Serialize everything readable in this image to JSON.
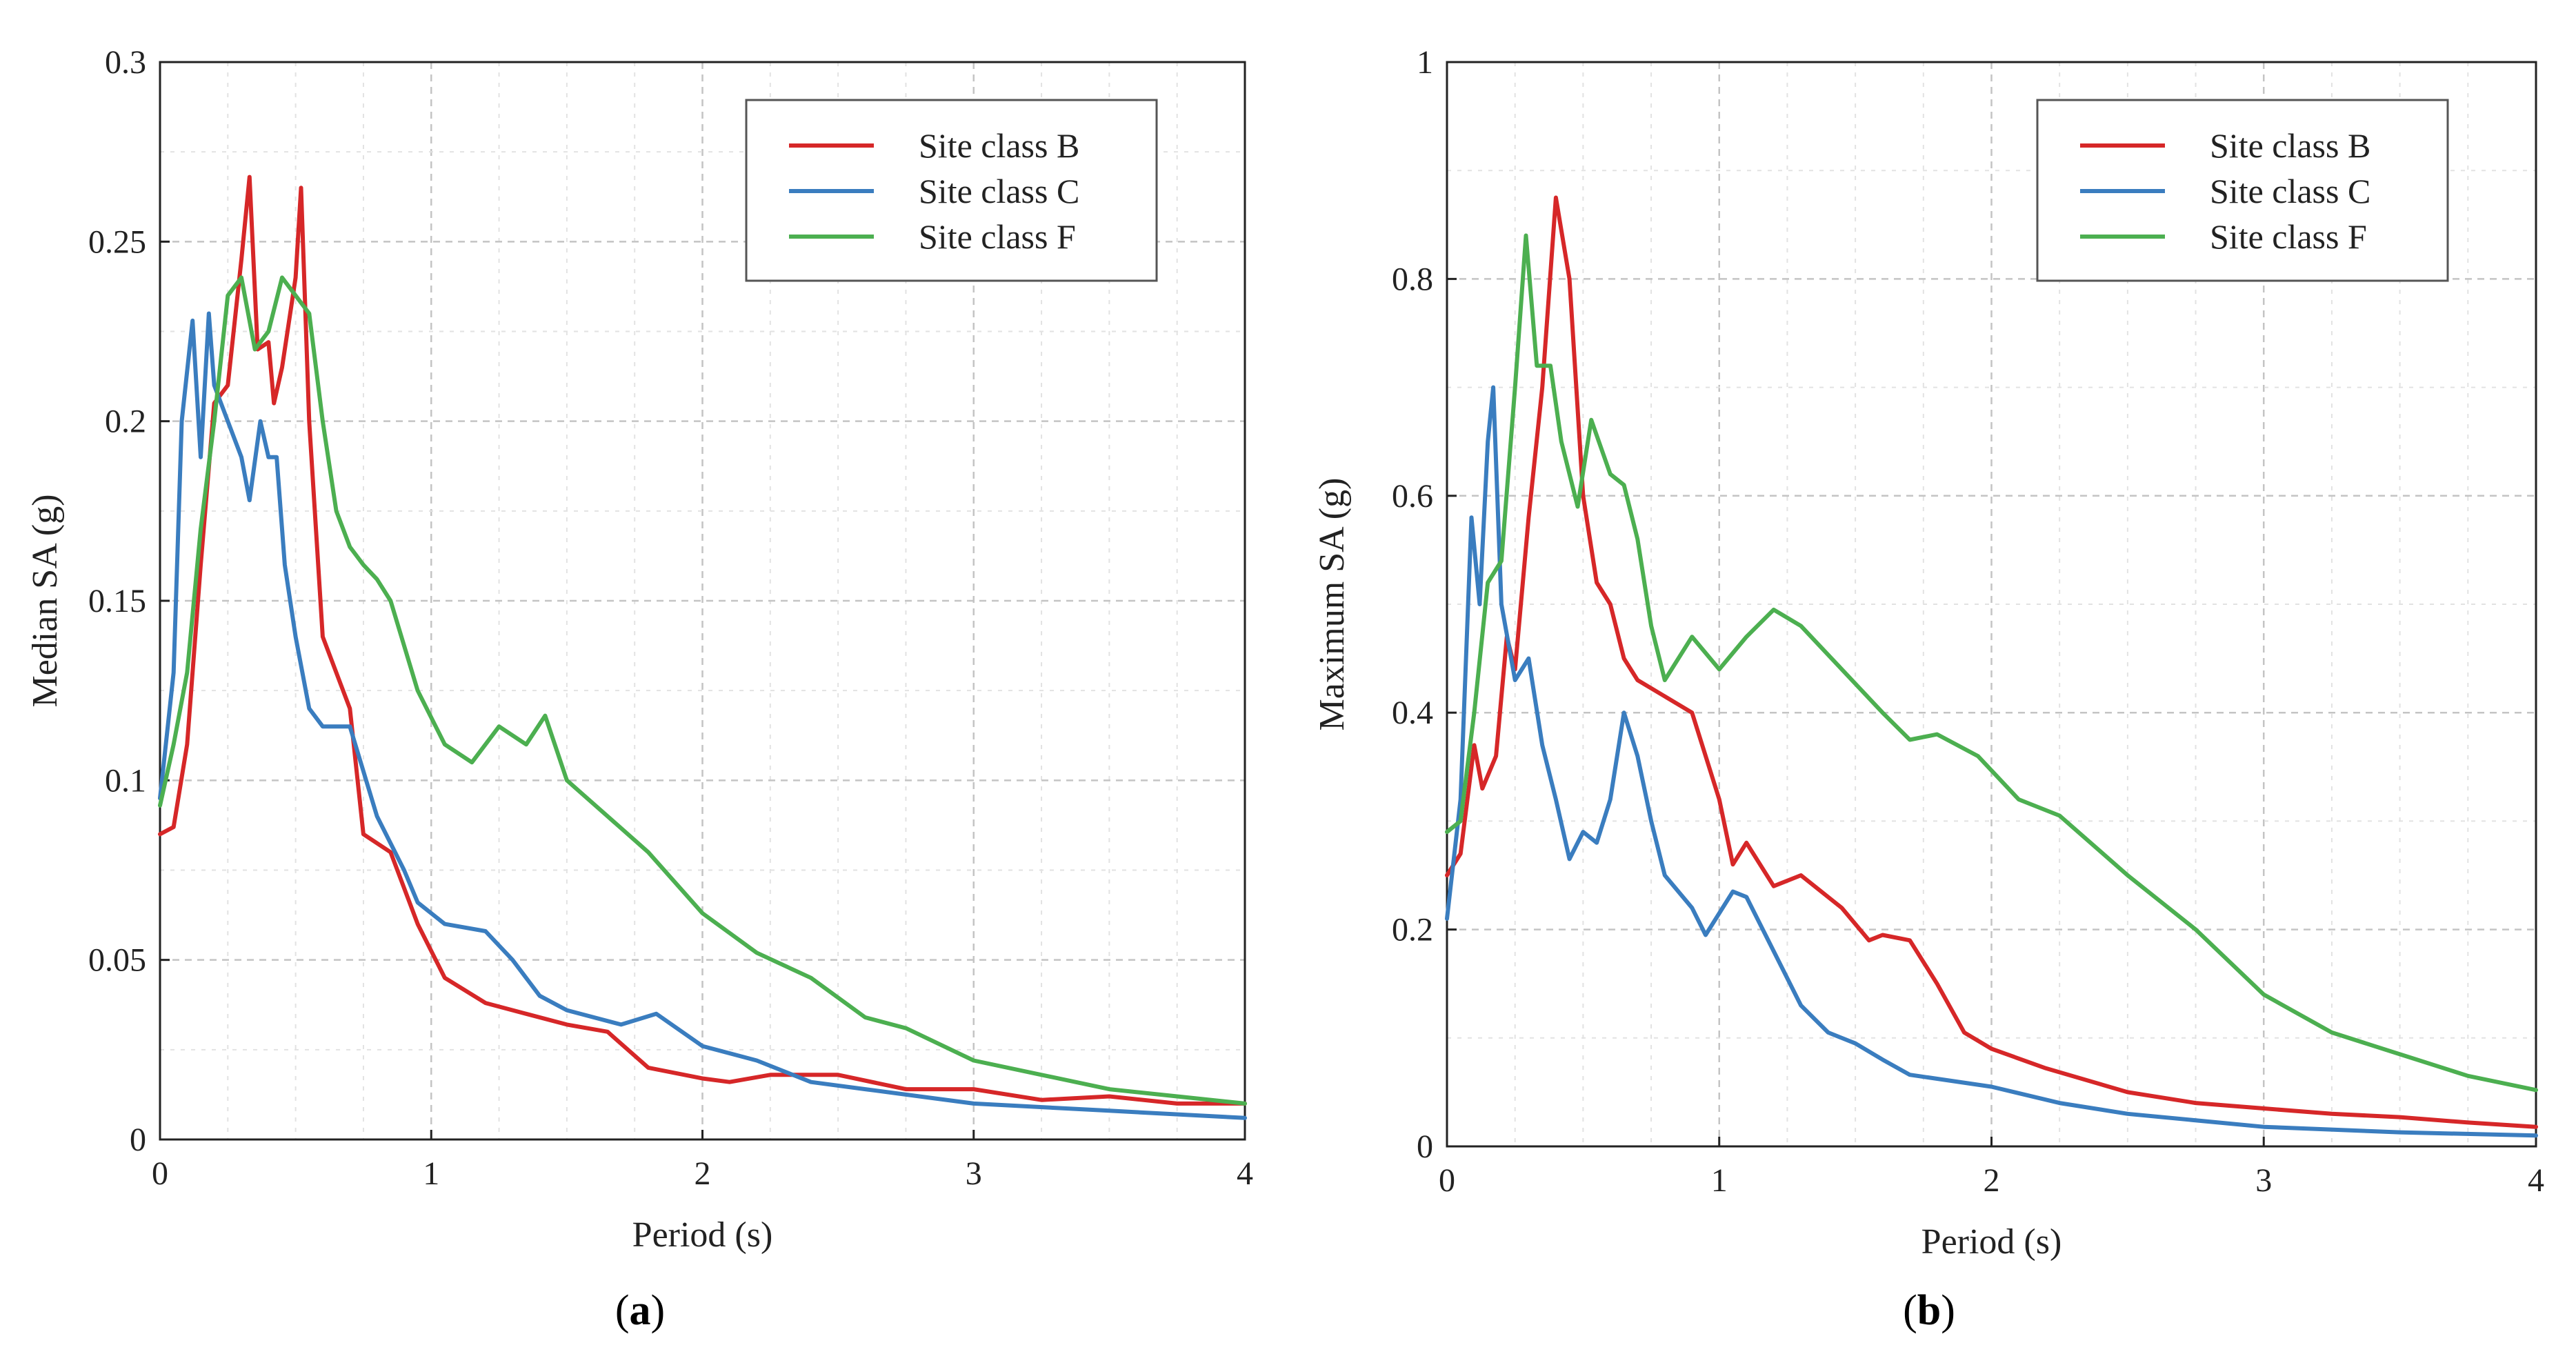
{
  "chart_data": [
    {
      "type": "line",
      "panel_label": "a",
      "title": "",
      "xlabel": "Period (s)",
      "ylabel": "Median SA (g)",
      "xlim": [
        0,
        4
      ],
      "ylim": [
        0,
        0.3
      ],
      "x_ticks": [
        0,
        1,
        2,
        3,
        4
      ],
      "x_tick_labels": [
        "0",
        "1",
        "2",
        "3",
        "4"
      ],
      "y_ticks": [
        0,
        0.05,
        0.1,
        0.15,
        0.2,
        0.25,
        0.3
      ],
      "y_tick_labels": [
        "0",
        "0.05",
        "0.1",
        "0.15",
        "0.2",
        "0.25",
        "0.3"
      ],
      "grid": true,
      "legend_position": "top-right",
      "series": [
        {
          "name": "Site class B",
          "color": "#d62728",
          "points": [
            [
              0,
              0.085
            ],
            [
              0.05,
              0.087
            ],
            [
              0.1,
              0.11
            ],
            [
              0.15,
              0.16
            ],
            [
              0.2,
              0.205
            ],
            [
              0.25,
              0.21
            ],
            [
              0.3,
              0.245
            ],
            [
              0.33,
              0.268
            ],
            [
              0.36,
              0.22
            ],
            [
              0.4,
              0.222
            ],
            [
              0.42,
              0.205
            ],
            [
              0.45,
              0.215
            ],
            [
              0.5,
              0.24
            ],
            [
              0.52,
              0.265
            ],
            [
              0.55,
              0.2
            ],
            [
              0.6,
              0.14
            ],
            [
              0.7,
              0.12
            ],
            [
              0.75,
              0.085
            ],
            [
              0.85,
              0.08
            ],
            [
              0.95,
              0.06
            ],
            [
              1.05,
              0.045
            ],
            [
              1.2,
              0.038
            ],
            [
              1.35,
              0.035
            ],
            [
              1.5,
              0.032
            ],
            [
              1.65,
              0.03
            ],
            [
              1.8,
              0.02
            ],
            [
              2.0,
              0.017
            ],
            [
              2.1,
              0.016
            ],
            [
              2.25,
              0.018
            ],
            [
              2.5,
              0.018
            ],
            [
              2.75,
              0.014
            ],
            [
              3.0,
              0.014
            ],
            [
              3.25,
              0.011
            ],
            [
              3.5,
              0.012
            ],
            [
              3.75,
              0.01
            ],
            [
              4.0,
              0.01
            ]
          ]
        },
        {
          "name": "Site class C",
          "color": "#3a7dbf",
          "points": [
            [
              0,
              0.095
            ],
            [
              0.05,
              0.13
            ],
            [
              0.08,
              0.2
            ],
            [
              0.12,
              0.228
            ],
            [
              0.15,
              0.19
            ],
            [
              0.18,
              0.23
            ],
            [
              0.2,
              0.21
            ],
            [
              0.25,
              0.2
            ],
            [
              0.3,
              0.19
            ],
            [
              0.33,
              0.178
            ],
            [
              0.37,
              0.2
            ],
            [
              0.4,
              0.19
            ],
            [
              0.43,
              0.19
            ],
            [
              0.46,
              0.16
            ],
            [
              0.5,
              0.14
            ],
            [
              0.55,
              0.12
            ],
            [
              0.6,
              0.115
            ],
            [
              0.7,
              0.115
            ],
            [
              0.8,
              0.09
            ],
            [
              0.9,
              0.075
            ],
            [
              0.95,
              0.066
            ],
            [
              1.05,
              0.06
            ],
            [
              1.2,
              0.058
            ],
            [
              1.3,
              0.05
            ],
            [
              1.4,
              0.04
            ],
            [
              1.5,
              0.036
            ],
            [
              1.7,
              0.032
            ],
            [
              1.83,
              0.035
            ],
            [
              2.0,
              0.026
            ],
            [
              2.2,
              0.022
            ],
            [
              2.4,
              0.016
            ],
            [
              2.6,
              0.014
            ],
            [
              2.8,
              0.012
            ],
            [
              3.0,
              0.01
            ],
            [
              3.5,
              0.008
            ],
            [
              4.0,
              0.006
            ]
          ]
        },
        {
          "name": "Site class F",
          "color": "#4caf50",
          "points": [
            [
              0,
              0.093
            ],
            [
              0.05,
              0.11
            ],
            [
              0.1,
              0.13
            ],
            [
              0.15,
              0.17
            ],
            [
              0.2,
              0.2
            ],
            [
              0.25,
              0.235
            ],
            [
              0.3,
              0.24
            ],
            [
              0.35,
              0.22
            ],
            [
              0.4,
              0.225
            ],
            [
              0.45,
              0.24
            ],
            [
              0.5,
              0.235
            ],
            [
              0.55,
              0.23
            ],
            [
              0.6,
              0.2
            ],
            [
              0.65,
              0.175
            ],
            [
              0.7,
              0.165
            ],
            [
              0.75,
              0.16
            ],
            [
              0.8,
              0.156
            ],
            [
              0.85,
              0.15
            ],
            [
              0.95,
              0.125
            ],
            [
              1.05,
              0.11
            ],
            [
              1.15,
              0.105
            ],
            [
              1.25,
              0.115
            ],
            [
              1.35,
              0.11
            ],
            [
              1.42,
              0.118
            ],
            [
              1.5,
              0.1
            ],
            [
              1.65,
              0.09
            ],
            [
              1.8,
              0.08
            ],
            [
              2.0,
              0.063
            ],
            [
              2.2,
              0.052
            ],
            [
              2.4,
              0.045
            ],
            [
              2.6,
              0.034
            ],
            [
              2.75,
              0.031
            ],
            [
              3.0,
              0.022
            ],
            [
              3.25,
              0.018
            ],
            [
              3.5,
              0.014
            ],
            [
              3.75,
              0.012
            ],
            [
              4.0,
              0.01
            ]
          ]
        }
      ]
    },
    {
      "type": "line",
      "panel_label": "b",
      "title": "",
      "xlabel": "Period (s)",
      "ylabel": "Maximum SA (g)",
      "xlim": [
        0,
        4
      ],
      "ylim": [
        0,
        1
      ],
      "x_ticks": [
        0,
        1,
        2,
        3,
        4
      ],
      "x_tick_labels": [
        "0",
        "1",
        "2",
        "3",
        "4"
      ],
      "y_ticks": [
        0,
        0.2,
        0.4,
        0.6,
        0.8,
        1
      ],
      "y_tick_labels": [
        "0",
        "0.2",
        "0.4",
        "0.6",
        "0.8",
        "1"
      ],
      "grid": true,
      "legend_position": "top-right",
      "series": [
        {
          "name": "Site class B",
          "color": "#d62728",
          "points": [
            [
              0,
              0.25
            ],
            [
              0.05,
              0.27
            ],
            [
              0.1,
              0.37
            ],
            [
              0.13,
              0.33
            ],
            [
              0.18,
              0.36
            ],
            [
              0.22,
              0.47
            ],
            [
              0.25,
              0.44
            ],
            [
              0.3,
              0.58
            ],
            [
              0.35,
              0.7
            ],
            [
              0.4,
              0.875
            ],
            [
              0.45,
              0.8
            ],
            [
              0.5,
              0.6
            ],
            [
              0.55,
              0.52
            ],
            [
              0.6,
              0.5
            ],
            [
              0.65,
              0.45
            ],
            [
              0.7,
              0.43
            ],
            [
              0.8,
              0.415
            ],
            [
              0.9,
              0.4
            ],
            [
              1.0,
              0.32
            ],
            [
              1.05,
              0.26
            ],
            [
              1.1,
              0.28
            ],
            [
              1.2,
              0.24
            ],
            [
              1.3,
              0.25
            ],
            [
              1.45,
              0.22
            ],
            [
              1.55,
              0.19
            ],
            [
              1.6,
              0.195
            ],
            [
              1.7,
              0.19
            ],
            [
              1.8,
              0.15
            ],
            [
              1.9,
              0.105
            ],
            [
              2.0,
              0.09
            ],
            [
              2.2,
              0.072
            ],
            [
              2.5,
              0.05
            ],
            [
              2.75,
              0.04
            ],
            [
              3.0,
              0.035
            ],
            [
              3.25,
              0.03
            ],
            [
              3.5,
              0.027
            ],
            [
              3.75,
              0.022
            ],
            [
              4.0,
              0.018
            ]
          ]
        },
        {
          "name": "Site class C",
          "color": "#3a7dbf",
          "points": [
            [
              0,
              0.21
            ],
            [
              0.05,
              0.32
            ],
            [
              0.09,
              0.58
            ],
            [
              0.12,
              0.5
            ],
            [
              0.15,
              0.65
            ],
            [
              0.17,
              0.7
            ],
            [
              0.2,
              0.5
            ],
            [
              0.25,
              0.43
            ],
            [
              0.3,
              0.45
            ],
            [
              0.35,
              0.37
            ],
            [
              0.4,
              0.32
            ],
            [
              0.45,
              0.265
            ],
            [
              0.5,
              0.29
            ],
            [
              0.55,
              0.28
            ],
            [
              0.6,
              0.32
            ],
            [
              0.65,
              0.4
            ],
            [
              0.7,
              0.36
            ],
            [
              0.75,
              0.3
            ],
            [
              0.8,
              0.25
            ],
            [
              0.9,
              0.22
            ],
            [
              0.95,
              0.195
            ],
            [
              1.05,
              0.235
            ],
            [
              1.1,
              0.23
            ],
            [
              1.2,
              0.18
            ],
            [
              1.3,
              0.13
            ],
            [
              1.4,
              0.105
            ],
            [
              1.5,
              0.095
            ],
            [
              1.6,
              0.08
            ],
            [
              1.7,
              0.066
            ],
            [
              2.0,
              0.055
            ],
            [
              2.25,
              0.04
            ],
            [
              2.5,
              0.03
            ],
            [
              3.0,
              0.018
            ],
            [
              3.5,
              0.013
            ],
            [
              4.0,
              0.01
            ]
          ]
        },
        {
          "name": "Site class F",
          "color": "#4caf50",
          "points": [
            [
              0,
              0.29
            ],
            [
              0.05,
              0.3
            ],
            [
              0.1,
              0.4
            ],
            [
              0.15,
              0.52
            ],
            [
              0.2,
              0.54
            ],
            [
              0.25,
              0.7
            ],
            [
              0.29,
              0.84
            ],
            [
              0.33,
              0.72
            ],
            [
              0.38,
              0.72
            ],
            [
              0.42,
              0.65
            ],
            [
              0.48,
              0.59
            ],
            [
              0.53,
              0.67
            ],
            [
              0.6,
              0.62
            ],
            [
              0.65,
              0.61
            ],
            [
              0.7,
              0.56
            ],
            [
              0.75,
              0.48
            ],
            [
              0.8,
              0.43
            ],
            [
              0.9,
              0.47
            ],
            [
              1.0,
              0.44
            ],
            [
              1.1,
              0.47
            ],
            [
              1.2,
              0.495
            ],
            [
              1.3,
              0.48
            ],
            [
              1.45,
              0.44
            ],
            [
              1.6,
              0.4
            ],
            [
              1.7,
              0.375
            ],
            [
              1.8,
              0.38
            ],
            [
              1.95,
              0.36
            ],
            [
              2.1,
              0.32
            ],
            [
              2.25,
              0.305
            ],
            [
              2.5,
              0.25
            ],
            [
              2.75,
              0.2
            ],
            [
              3.0,
              0.14
            ],
            [
              3.25,
              0.105
            ],
            [
              3.5,
              0.085
            ],
            [
              3.75,
              0.065
            ],
            [
              4.0,
              0.052
            ]
          ]
        }
      ]
    }
  ],
  "labels": {
    "panel_a": "a",
    "panel_b": "b"
  }
}
